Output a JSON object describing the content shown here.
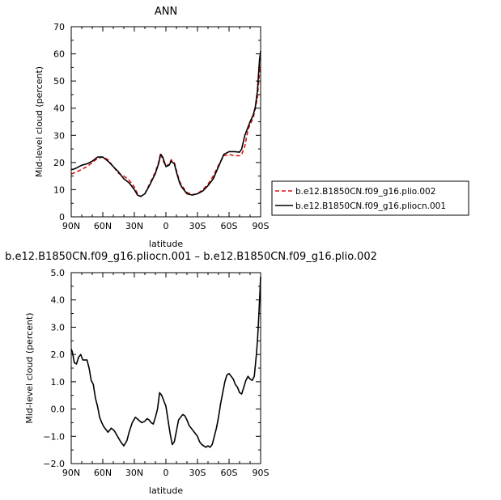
{
  "chart_data": [
    {
      "type": "line",
      "title": "ANN",
      "xlabel": "latitude",
      "ylabel": "Mid-level cloud (percent)",
      "xlim": [
        90,
        -90
      ],
      "ylim": [
        0,
        70
      ],
      "x_ticks": [
        90,
        60,
        30,
        0,
        -30,
        -60,
        -90
      ],
      "x_tick_labels": [
        "90N",
        "60N",
        "30N",
        "0",
        "30S",
        "60S",
        "90S"
      ],
      "y_ticks": [
        0,
        10,
        20,
        30,
        40,
        50,
        60,
        70
      ],
      "y_tick_labels": [
        "0",
        "10",
        "20",
        "30",
        "40",
        "50",
        "60",
        "70"
      ],
      "legend_placement": "right",
      "series": [
        {
          "name": "b.e12.B1850CN.f09_g16.plio.002",
          "color": "#e01010",
          "dash": "dashed",
          "x": [
            90,
            85,
            80,
            75,
            70,
            65,
            60,
            55,
            50,
            45,
            40,
            35,
            30,
            27,
            24,
            20,
            15,
            10,
            7,
            5,
            3,
            0,
            -3,
            -5,
            -8,
            -10,
            -13,
            -15,
            -18,
            -20,
            -25,
            -30,
            -35,
            -40,
            -45,
            -50,
            -55,
            -60,
            -65,
            -70,
            -72,
            -75,
            -78,
            -80,
            -83,
            -85,
            -87,
            -88,
            -89,
            -90
          ],
          "y": [
            15.8,
            16.5,
            17.5,
            18.5,
            20.0,
            21.5,
            22.0,
            21.0,
            18.5,
            16.0,
            15.0,
            13.5,
            11.0,
            8.5,
            7.5,
            8.5,
            12.5,
            16.5,
            20.0,
            23.5,
            21.0,
            18.5,
            19.5,
            21.0,
            20.0,
            17.0,
            13.0,
            11.5,
            10.0,
            9.0,
            8.2,
            8.5,
            10.0,
            12.0,
            15.0,
            19.0,
            22.5,
            23.0,
            22.5,
            22.5,
            23.0,
            26.0,
            32.0,
            34.0,
            36.5,
            40.0,
            44.0,
            49.0,
            53.0,
            56.0
          ]
        },
        {
          "name": "b.e12.B1850CN.f09_g16.pliocn.001",
          "color": "#000000",
          "dash": "solid",
          "x": [
            90,
            88,
            85,
            80,
            75,
            70,
            65,
            60,
            55,
            50,
            45,
            40,
            35,
            30,
            27,
            24,
            20,
            15,
            10,
            7,
            5,
            3,
            0,
            -3,
            -5,
            -8,
            -10,
            -13,
            -15,
            -18,
            -20,
            -25,
            -30,
            -35,
            -40,
            -45,
            -50,
            -55,
            -60,
            -65,
            -70,
            -72,
            -75,
            -78,
            -80,
            -83,
            -85,
            -87,
            -88,
            -89,
            -90
          ],
          "y": [
            17.5,
            17.5,
            18.0,
            19.0,
            19.5,
            20.5,
            22.0,
            22.0,
            20.5,
            18.5,
            16.5,
            14.0,
            12.5,
            10.0,
            8.0,
            7.5,
            8.5,
            12.0,
            16.0,
            19.5,
            23.0,
            22.0,
            18.5,
            19.0,
            20.5,
            19.5,
            16.5,
            12.5,
            11.0,
            9.5,
            8.5,
            8.0,
            8.5,
            9.5,
            11.5,
            14.0,
            18.5,
            23.0,
            24.0,
            24.0,
            23.8,
            25.0,
            30.0,
            33.0,
            35.0,
            37.5,
            40.5,
            46.5,
            52.5,
            58.0,
            61.0
          ]
        }
      ]
    },
    {
      "type": "line",
      "title": "b.e12.B1850CN.f09_g16.pliocn.001 – b.e12.B1850CN.f09_g16.plio.002",
      "xlabel": "latitude",
      "ylabel": "Mid-level cloud (percent)",
      "xlim": [
        90,
        -90
      ],
      "ylim": [
        -2.0,
        5.0
      ],
      "x_ticks": [
        90,
        60,
        30,
        0,
        -30,
        -60,
        -90
      ],
      "x_tick_labels": [
        "90N",
        "60N",
        "30N",
        "0",
        "30S",
        "60S",
        "90S"
      ],
      "y_ticks": [
        -2,
        -1,
        0,
        1,
        2,
        3,
        4,
        5
      ],
      "y_tick_labels": [
        "−2.0",
        "−1.0",
        "0.0",
        "1.0",
        "2.0",
        "3.0",
        "4.0",
        "5.0"
      ],
      "series": [
        {
          "color": "#000000",
          "dash": "solid",
          "x": [
            90,
            89,
            87,
            85,
            83,
            81,
            79,
            77,
            75,
            73,
            71,
            69,
            67,
            65,
            63,
            61,
            59,
            57,
            55,
            52,
            49,
            46,
            43,
            40,
            37,
            35,
            32,
            29,
            26,
            23,
            20,
            18,
            16,
            14,
            12,
            10,
            8,
            6,
            4,
            2,
            0,
            -2,
            -4,
            -6,
            -8,
            -10,
            -12,
            -14,
            -16,
            -18,
            -20,
            -22,
            -24,
            -26,
            -28,
            -30,
            -32,
            -34,
            -36,
            -38,
            -40,
            -42,
            -44,
            -46,
            -48,
            -50,
            -52,
            -54,
            -56,
            -58,
            -60,
            -62,
            -64,
            -66,
            -68,
            -70,
            -72,
            -74,
            -76,
            -78,
            -80,
            -82,
            -84,
            -86,
            -87,
            -88,
            -89,
            -90
          ],
          "y": [
            2.2,
            2.1,
            1.7,
            1.65,
            1.9,
            2.0,
            1.8,
            1.8,
            1.8,
            1.5,
            1.05,
            0.9,
            0.4,
            0.1,
            -0.3,
            -0.5,
            -0.65,
            -0.75,
            -0.85,
            -0.7,
            -0.8,
            -1.0,
            -1.2,
            -1.35,
            -1.15,
            -0.85,
            -0.5,
            -0.3,
            -0.4,
            -0.5,
            -0.45,
            -0.35,
            -0.4,
            -0.5,
            -0.55,
            -0.3,
            0.0,
            0.6,
            0.5,
            0.3,
            0.1,
            -0.4,
            -0.9,
            -1.3,
            -1.2,
            -0.8,
            -0.4,
            -0.3,
            -0.2,
            -0.25,
            -0.4,
            -0.6,
            -0.7,
            -0.8,
            -0.9,
            -1.0,
            -1.2,
            -1.3,
            -1.35,
            -1.4,
            -1.35,
            -1.4,
            -1.3,
            -1.0,
            -0.7,
            -0.3,
            0.2,
            0.6,
            1.0,
            1.25,
            1.3,
            1.2,
            1.1,
            0.9,
            0.8,
            0.6,
            0.55,
            0.8,
            1.05,
            1.2,
            1.1,
            1.05,
            1.2,
            2.0,
            2.5,
            3.2,
            4.0,
            4.85
          ]
        }
      ]
    }
  ]
}
